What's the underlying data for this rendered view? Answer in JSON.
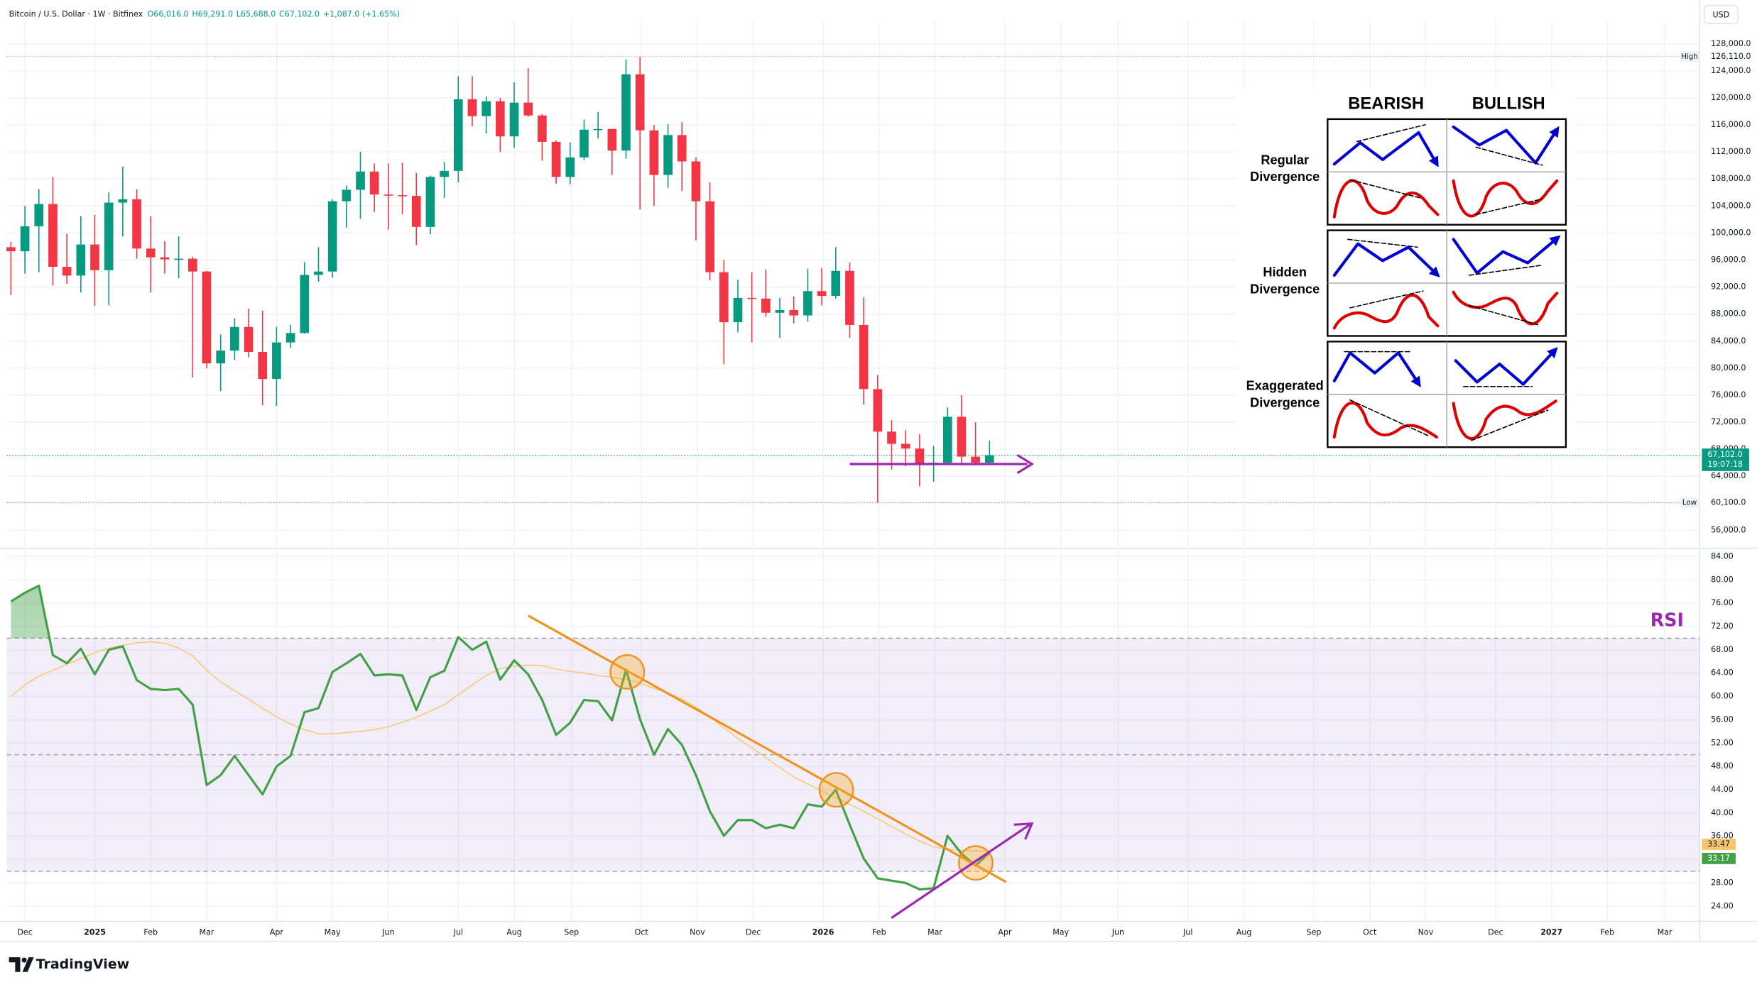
{
  "header": {
    "symbol": "Bitcoin / U.S. Dollar · 1W · Bitfinex",
    "ohlc": [
      "O66,016.0",
      "H69,291.0",
      "L65,688.0",
      "C67,102.0",
      "+1,087.0 (+1.65%)"
    ],
    "currency": "USD"
  },
  "chart_data": [
    {
      "type": "candlestick",
      "up_color": "#089981",
      "down_color": "#f23645",
      "grid": true,
      "open": [
        97900,
        97300,
        101000,
        104300,
        95000,
        93700,
        98300,
        94500,
        104500,
        105000,
        97700,
        96400,
        96100,
        96200,
        94300,
        80700,
        82600,
        86100,
        82400,
        78400,
        83800,
        85200,
        93800,
        94300,
        104700,
        106400,
        109100,
        105700,
        105600,
        105500,
        100900,
        108300,
        109200,
        119800,
        117300,
        119500,
        114300,
        119300,
        117400,
        113500,
        108300,
        111200,
        115300,
        115400,
        112200,
        123500,
        115200,
        108600,
        114500,
        110600,
        104700,
        94200,
        86800,
        90400,
        90300,
        88200,
        88600,
        87800,
        91400,
        90700,
        94400,
        86400,
        76900,
        70600,
        68800,
        68100,
        65900,
        66000,
        72800,
        66900,
        66016
      ],
      "high": [
        98700,
        104000,
        106500,
        108300,
        99900,
        102500,
        102700,
        106000,
        109800,
        106500,
        102500,
        98800,
        99500,
        96500,
        94400,
        85000,
        87400,
        88800,
        88500,
        86100,
        86400,
        95700,
        97900,
        105000,
        107000,
        112000,
        110300,
        110300,
        110400,
        108900,
        108500,
        110500,
        123200,
        123200,
        120200,
        120000,
        122300,
        124400,
        117600,
        113700,
        113400,
        116800,
        117900,
        115400,
        125700,
        126110,
        116000,
        116100,
        116400,
        111200,
        107500,
        96000,
        93100,
        94200,
        94600,
        90400,
        90600,
        94700,
        94800,
        97900,
        95600,
        90500,
        79000,
        72300,
        70800,
        70200,
        68500,
        74200,
        76000,
        72000,
        69291
      ],
      "low": [
        90800,
        94000,
        94200,
        92200,
        92500,
        91200,
        89200,
        89300,
        99500,
        96200,
        91200,
        94000,
        93300,
        78600,
        80000,
        76600,
        81200,
        81600,
        74500,
        74400,
        83000,
        85100,
        92800,
        93400,
        100800,
        102100,
        103100,
        100500,
        102800,
        98200,
        99800,
        105200,
        107500,
        115800,
        114700,
        112000,
        112600,
        117200,
        110700,
        107300,
        107200,
        110800,
        114000,
        108600,
        111000,
        103500,
        104000,
        106700,
        106200,
        98900,
        93000,
        80600,
        85300,
        83800,
        87600,
        84500,
        86600,
        86900,
        89300,
        90300,
        84500,
        74600,
        60100,
        65000,
        65500,
        62500,
        63200,
        65800,
        65600,
        65600,
        65688
      ],
      "close": [
        97300,
        101000,
        104300,
        95000,
        93700,
        98300,
        94500,
        104500,
        105000,
        97700,
        96400,
        96100,
        96200,
        94300,
        80700,
        82600,
        86100,
        82400,
        78400,
        83800,
        85200,
        93800,
        94300,
        104700,
        106400,
        109100,
        105700,
        105600,
        105500,
        100900,
        108300,
        109200,
        119800,
        117300,
        119500,
        114300,
        119300,
        117400,
        113500,
        108300,
        111200,
        115300,
        115400,
        112200,
        123500,
        115200,
        108600,
        114500,
        110600,
        104700,
        94200,
        86800,
        90400,
        90300,
        88200,
        88600,
        87800,
        91400,
        90700,
        94400,
        86400,
        76900,
        70600,
        68800,
        68100,
        65900,
        66000,
        72800,
        66900,
        66016,
        67102
      ],
      "xlim": [
        -0.3,
        120.8
      ],
      "xticks": [
        {
          "value": 1.0,
          "label": "Dec"
        },
        {
          "value": 6.0,
          "label": "2025"
        },
        {
          "value": 10.0,
          "label": "Feb"
        },
        {
          "value": 14.0,
          "label": "Mar"
        },
        {
          "value": 19.0,
          "label": "Apr"
        },
        {
          "value": 23.0,
          "label": "May"
        },
        {
          "value": 27.0,
          "label": "Jun"
        },
        {
          "value": 32.0,
          "label": "Jul"
        },
        {
          "value": 36.0,
          "label": "Aug"
        },
        {
          "value": 40.1,
          "label": "Sep"
        },
        {
          "value": 45.1,
          "label": "Oct"
        },
        {
          "value": 49.1,
          "label": "Nov"
        },
        {
          "value": 53.1,
          "label": "Dec"
        },
        {
          "value": 58.1,
          "label": "2026"
        },
        {
          "value": 62.1,
          "label": "Feb"
        },
        {
          "value": 66.1,
          "label": "Mar"
        },
        {
          "value": 71.1,
          "label": "Apr"
        },
        {
          "value": 75.1,
          "label": "May"
        },
        {
          "value": 79.2,
          "label": "Jun"
        },
        {
          "value": 84.2,
          "label": "Jul"
        },
        {
          "value": 88.2,
          "label": "Aug"
        },
        {
          "value": 93.2,
          "label": "Sep"
        },
        {
          "value": 97.2,
          "label": "Oct"
        },
        {
          "value": 101.2,
          "label": "Nov"
        },
        {
          "value": 106.2,
          "label": "Dec"
        },
        {
          "value": 110.2,
          "label": "2027"
        },
        {
          "value": 114.2,
          "label": "Feb"
        },
        {
          "value": 118.3,
          "label": "Mar"
        }
      ],
      "ylim": [
        54000,
        130000
      ],
      "yticks": [
        {
          "value": 128000,
          "label": "128,000.0"
        },
        {
          "value": 124000,
          "label": "124,000.0"
        },
        {
          "value": 120000,
          "label": "120,000.0"
        },
        {
          "value": 116000,
          "label": "116,000.0"
        },
        {
          "value": 112000,
          "label": "112,000.0"
        },
        {
          "value": 108000,
          "label": "108,000.0"
        },
        {
          "value": 104000,
          "label": "104,000.0"
        },
        {
          "value": 100000,
          "label": "100,000.0"
        },
        {
          "value": 96000,
          "label": "96,000.0"
        },
        {
          "value": 92000,
          "label": "92,000.0"
        },
        {
          "value": 88000,
          "label": "88,000.0"
        },
        {
          "value": 84000,
          "label": "84,000.0"
        },
        {
          "value": 80000,
          "label": "80,000.0"
        },
        {
          "value": 76000,
          "label": "76,000.0"
        },
        {
          "value": 72000,
          "label": "72,000.0"
        },
        {
          "value": 68000,
          "label": "68,000.0"
        },
        {
          "value": 64000,
          "label": "64,000.0"
        },
        {
          "value": 60000,
          "label": "60,000.0"
        },
        {
          "value": 56000,
          "label": "56,000.0"
        }
      ],
      "high_marker": {
        "label": "High",
        "value": 126110,
        "value_label": "126,110.0"
      },
      "low_marker": {
        "label": "Low",
        "value": 60100,
        "value_label": "60,100.0"
      },
      "last_price": {
        "value": 67102,
        "label": "67,102.0"
      },
      "countdown": "19:07:18"
    },
    {
      "type": "line",
      "title": "RSI",
      "title_color": "#9c27b0",
      "ylim": [
        22,
        86
      ],
      "yticks": [
        {
          "value": 84,
          "label": "84.00"
        },
        {
          "value": 80,
          "label": "80.00"
        },
        {
          "value": 76,
          "label": "76.00"
        },
        {
          "value": 72,
          "label": "72.00"
        },
        {
          "value": 68,
          "label": "68.00"
        },
        {
          "value": 64,
          "label": "64.00"
        },
        {
          "value": 60,
          "label": "60.00"
        },
        {
          "value": 56,
          "label": "56.00"
        },
        {
          "value": 52,
          "label": "52.00"
        },
        {
          "value": 48,
          "label": "48.00"
        },
        {
          "value": 44,
          "label": "44.00"
        },
        {
          "value": 40,
          "label": "40.00"
        },
        {
          "value": 36,
          "label": "36.00"
        },
        {
          "value": 32,
          "label": "32.00"
        },
        {
          "value": 28,
          "label": "28.00"
        },
        {
          "value": 24,
          "label": "24.00"
        }
      ],
      "levels": [
        70,
        50,
        30
      ],
      "band": [
        30,
        70
      ],
      "band_color": "#7e57c2",
      "overbought_fill": "#43a047",
      "series": [
        {
          "color": "#43a047",
          "values": [
            76.3,
            77.8,
            79.0,
            67.1,
            65.7,
            68.2,
            63.8,
            68.0,
            68.6,
            62.8,
            61.3,
            61.1,
            61.3,
            58.6,
            44.8,
            46.5,
            49.8,
            46.5,
            43.2,
            48.0,
            49.8,
            57.3,
            58.0,
            64.2,
            65.7,
            67.3,
            63.6,
            63.8,
            63.6,
            57.7,
            63.3,
            64.4,
            70.2,
            68.0,
            69.4,
            62.9,
            66.2,
            63.8,
            59.4,
            53.4,
            55.5,
            59.4,
            59.2,
            55.9,
            64.6,
            56.1,
            50.0,
            54.4,
            51.7,
            46.5,
            40.3,
            36.1,
            38.8,
            38.8,
            37.4,
            38.0,
            37.4,
            41.5,
            41.1,
            44.0,
            38.0,
            32.2,
            28.8,
            28.4,
            28.0,
            26.9,
            27.1,
            36.1,
            33.0,
            31.0,
            33.17
          ]
        },
        {
          "color": "#f7c66b",
          "values": [
            60,
            62,
            63.5,
            64.5,
            65.5,
            66.5,
            67.5,
            68.3,
            68.8,
            69.2,
            69.4,
            69.1,
            68.3,
            67,
            64.5,
            62.5,
            61,
            59.5,
            58,
            56.5,
            55.3,
            54.3,
            53.6,
            53.6,
            53.8,
            54,
            54.3,
            54.8,
            55.6,
            56.4,
            57.5,
            58.6,
            60.3,
            62,
            63.6,
            64.8,
            65.2,
            65.4,
            65.3,
            64.7,
            64.3,
            64,
            63.6,
            63.3,
            62.9,
            62.3,
            61.4,
            60.6,
            59.6,
            58.2,
            56.5,
            54.6,
            52.8,
            51.2,
            49.5,
            47.8,
            46.2,
            45,
            43.8,
            42.6,
            41.5,
            40.3,
            39,
            37.7,
            36.4,
            35.2,
            34.2,
            33.8,
            33.6,
            33.5,
            33.47
          ]
        }
      ]
    }
  ],
  "divergence_guide": {
    "columns": [
      "BEARISH",
      "BULLISH"
    ],
    "rows": [
      [
        "Regular",
        "Divergence"
      ],
      [
        "Hidden",
        "Divergence"
      ],
      [
        "Exaggerated",
        "Divergence"
      ]
    ]
  },
  "branding": "TradingView"
}
